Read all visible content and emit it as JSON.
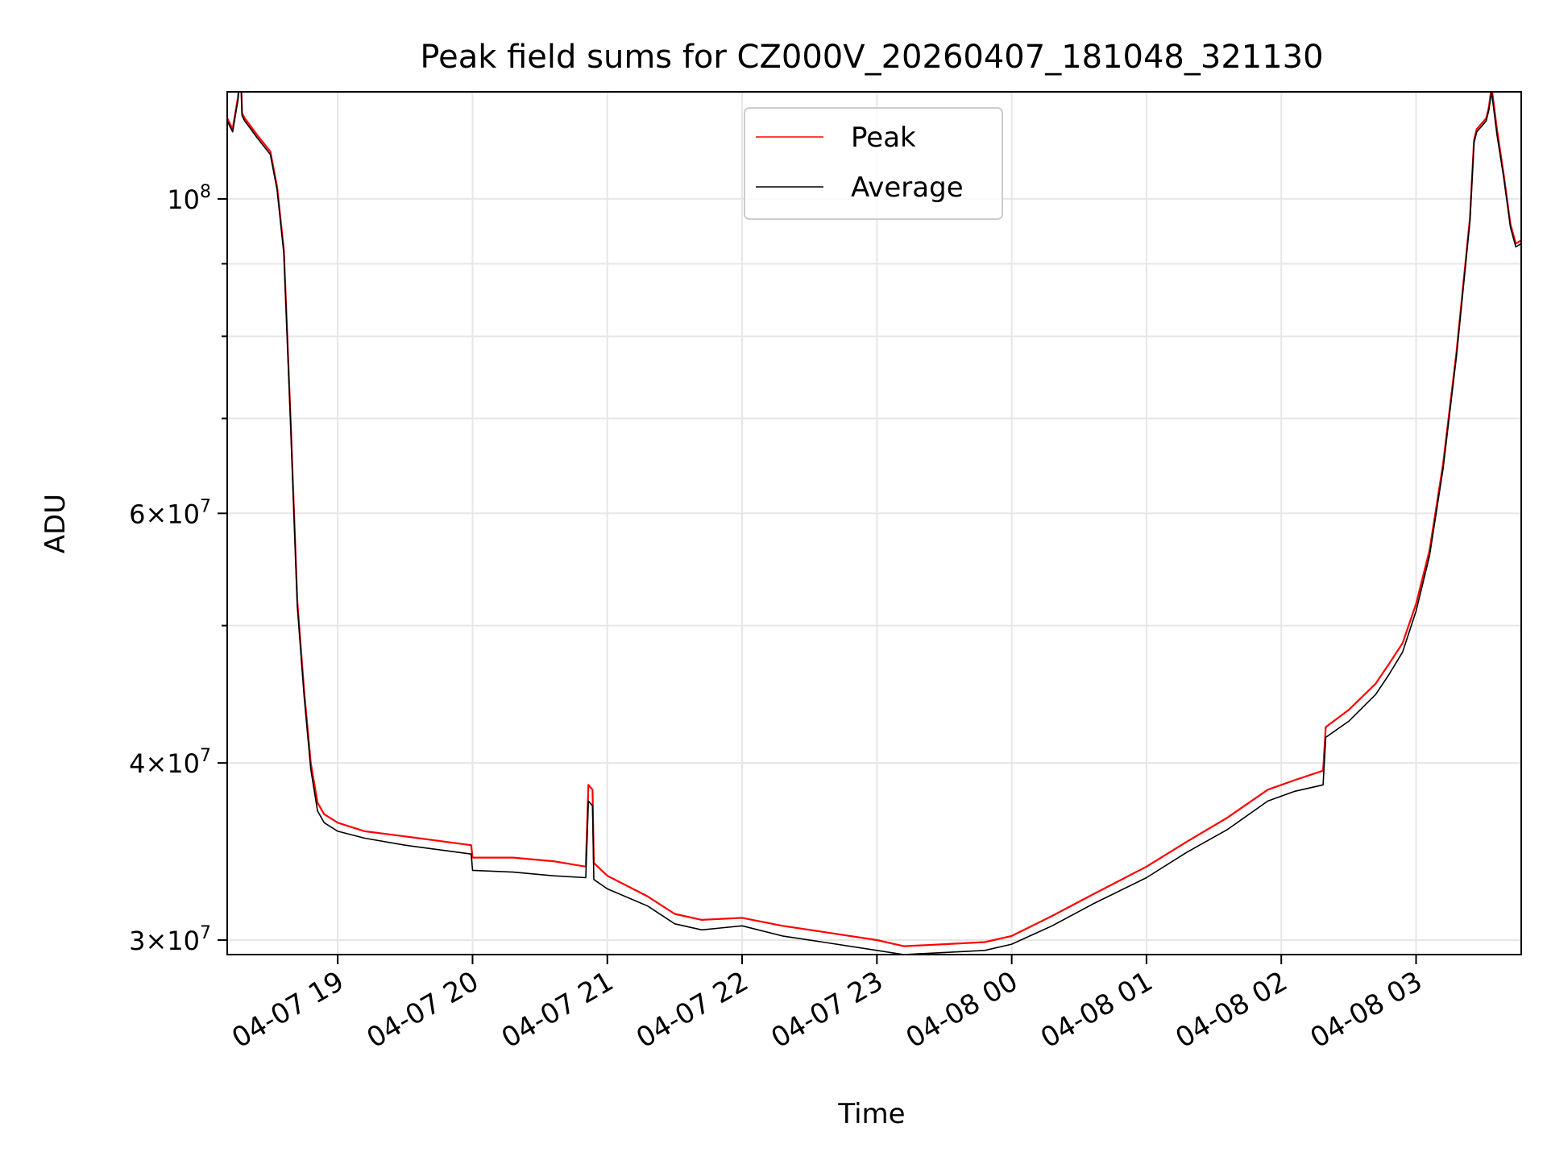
{
  "chart_data": {
    "type": "line",
    "title": "Peak field sums for CZ000V_20260407_181048_321130",
    "xlabel": "Time",
    "ylabel": "ADU",
    "yscale": "log",
    "ylim": [
      29300000,
      119000000
    ],
    "xlim_hours": [
      18.18,
      27.78
    ],
    "grid": true,
    "legend_position": "upper center",
    "x_ticks": [
      {
        "hour": 19,
        "label": "04-07 19"
      },
      {
        "hour": 20,
        "label": "04-07 20"
      },
      {
        "hour": 21,
        "label": "04-07 21"
      },
      {
        "hour": 22,
        "label": "04-07 22"
      },
      {
        "hour": 23,
        "label": "04-07 23"
      },
      {
        "hour": 24,
        "label": "04-08 00"
      },
      {
        "hour": 25,
        "label": "04-08 01"
      },
      {
        "hour": 26,
        "label": "04-08 02"
      },
      {
        "hour": 27,
        "label": "04-08 03"
      }
    ],
    "y_major_ticks": [
      {
        "value": 30000000,
        "base": "3",
        "exp": "7"
      },
      {
        "value": 40000000,
        "base": "4",
        "exp": "7"
      },
      {
        "value": 60000000,
        "base": "6",
        "exp": "7"
      },
      {
        "value": 100000000,
        "base": "",
        "exp": "8"
      }
    ],
    "y_minor_grid": [
      50000000,
      70000000,
      80000000,
      90000000
    ],
    "series": [
      {
        "name": "Peak",
        "color": "#ff0000",
        "hours": [
          18.18,
          18.22,
          18.26,
          18.28,
          18.29,
          18.31,
          18.34,
          18.4,
          18.5,
          18.55,
          18.6,
          18.65,
          18.7,
          18.75,
          18.8,
          18.85,
          18.9,
          19.0,
          19.2,
          19.5,
          19.99,
          20.0,
          20.3,
          20.6,
          20.84,
          20.86,
          20.89,
          20.9,
          21.0,
          21.3,
          21.5,
          21.7,
          22.0,
          22.3,
          22.6,
          23.0,
          23.2,
          23.5,
          23.8,
          24.0,
          24.3,
          24.6,
          25.0,
          25.3,
          25.6,
          25.9,
          26.1,
          26.31,
          26.33,
          26.5,
          26.7,
          26.8,
          26.9,
          27.0,
          27.1,
          27.2,
          27.3,
          27.4,
          27.43,
          27.45,
          27.52,
          27.54,
          27.56,
          27.6,
          27.65,
          27.7,
          27.74,
          27.78
        ],
        "values": [
          114000000,
          112000000,
          118000000,
          124000000,
          115000000,
          114000000,
          113000000,
          111000000,
          108000000,
          102000000,
          92000000,
          70000000,
          52000000,
          45000000,
          40000000,
          37500000,
          36800000,
          36300000,
          35800000,
          35500000,
          35000000,
          34300000,
          34300000,
          34100000,
          33800000,
          38600000,
          38300000,
          34000000,
          33300000,
          32200000,
          31300000,
          31000000,
          31100000,
          30700000,
          30400000,
          30000000,
          29700000,
          29800000,
          29900000,
          30200000,
          31200000,
          32300000,
          33800000,
          35200000,
          36600000,
          38300000,
          38900000,
          39500000,
          42400000,
          43600000,
          45500000,
          47000000,
          48600000,
          51800000,
          56500000,
          65000000,
          78000000,
          97000000,
          110000000,
          112000000,
          114000000,
          116000000,
          120000000,
          112000000,
          104000000,
          96000000,
          93000000,
          93500000
        ]
      },
      {
        "name": "Average",
        "color": "#000000",
        "hours": [
          18.18,
          18.22,
          18.26,
          18.28,
          18.29,
          18.31,
          18.34,
          18.4,
          18.5,
          18.55,
          18.6,
          18.65,
          18.7,
          18.75,
          18.8,
          18.85,
          18.9,
          19.0,
          19.2,
          19.5,
          19.99,
          20.0,
          20.3,
          20.6,
          20.84,
          20.86,
          20.89,
          20.9,
          21.0,
          21.3,
          21.5,
          21.7,
          22.0,
          22.3,
          22.6,
          23.0,
          23.2,
          23.5,
          23.8,
          24.0,
          24.3,
          24.6,
          25.0,
          25.3,
          25.6,
          25.9,
          26.1,
          26.31,
          26.33,
          26.5,
          26.7,
          26.8,
          26.9,
          27.0,
          27.1,
          27.2,
          27.3,
          27.4,
          27.43,
          27.45,
          27.52,
          27.54,
          27.56,
          27.6,
          27.65,
          27.7,
          27.74,
          27.78
        ],
        "values": [
          113500000,
          111500000,
          117500000,
          123000000,
          114500000,
          113500000,
          112500000,
          110500000,
          107500000,
          101500000,
          91500000,
          69500000,
          51600000,
          44600000,
          39600000,
          37000000,
          36300000,
          35800000,
          35400000,
          35000000,
          34500000,
          33600000,
          33500000,
          33300000,
          33200000,
          37600000,
          37300000,
          33100000,
          32600000,
          31700000,
          30800000,
          30500000,
          30700000,
          30200000,
          29900000,
          29500000,
          29300000,
          29400000,
          29500000,
          29800000,
          30700000,
          31800000,
          33200000,
          34600000,
          35900000,
          37600000,
          38200000,
          38600000,
          41700000,
          42800000,
          44700000,
          46200000,
          47900000,
          51200000,
          56000000,
          64500000,
          77500000,
          96500000,
          109500000,
          111500000,
          113500000,
          115500000,
          119000000,
          111000000,
          103500000,
          95500000,
          92500000,
          93000000
        ]
      }
    ]
  }
}
